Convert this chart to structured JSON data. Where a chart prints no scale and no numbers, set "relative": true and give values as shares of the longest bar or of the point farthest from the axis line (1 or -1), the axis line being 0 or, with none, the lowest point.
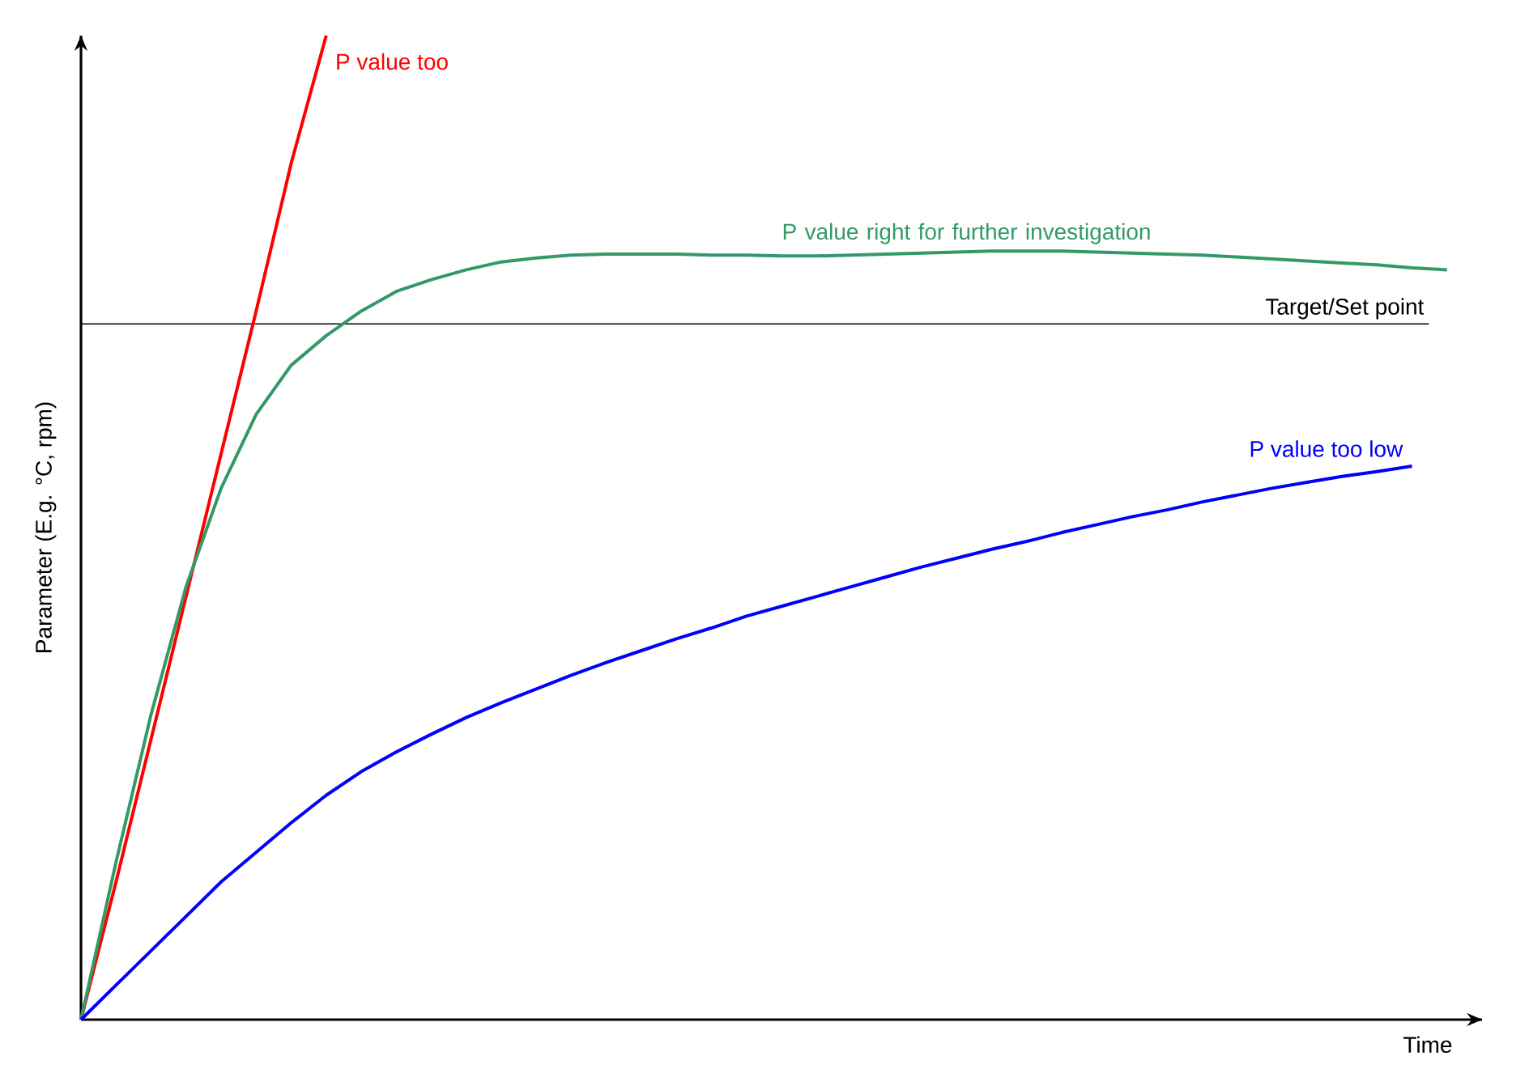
{
  "chart_data": {
    "type": "line",
    "xlabel": "Time",
    "ylabel": "Parameter (E.g. °C, rpm)",
    "relative": true,
    "categories": [
      null,
      null,
      null,
      null,
      null,
      null,
      null,
      null,
      null,
      null,
      null,
      null,
      null,
      null,
      null,
      null,
      null,
      null,
      null,
      null,
      null,
      null,
      null,
      null,
      null,
      null,
      null,
      null,
      null,
      null,
      null,
      null,
      null,
      null,
      null,
      null,
      null,
      null,
      null,
      null,
      null
    ],
    "series": [
      {
        "name": "P value too",
        "color": "#ff0000",
        "values": [
          0,
          0.14,
          0.285,
          0.43,
          0.575,
          0.72,
          0.87,
          1,
          null,
          null,
          null,
          null,
          null,
          null,
          null,
          null,
          null,
          null,
          null,
          null,
          null,
          null,
          null,
          null,
          null,
          null,
          null,
          null,
          null,
          null,
          null,
          null,
          null,
          null,
          null,
          null,
          null,
          null,
          null,
          null,
          null
        ]
      },
      {
        "name": "P value right for further investigation",
        "color": "#339966",
        "values": [
          0,
          0.16,
          0.31,
          0.44,
          0.54,
          0.615,
          0.665,
          0.695,
          0.72,
          0.74,
          0.752,
          0.762,
          0.77,
          0.774,
          0.777,
          0.778,
          0.778,
          0.778,
          0.777,
          0.777,
          0.776,
          0.776,
          0.777,
          0.778,
          0.779,
          0.78,
          0.781,
          0.781,
          0.781,
          0.78,
          0.779,
          0.778,
          0.777,
          0.775,
          0.773,
          0.771,
          0.769,
          0.767,
          0.764,
          0.762,
          null
        ]
      },
      {
        "name": "P value too low",
        "color": "#0000ff",
        "values": [
          0,
          0.035,
          0.07,
          0.105,
          0.14,
          0.17,
          0.2,
          0.228,
          0.252,
          0.272,
          0.29,
          0.307,
          0.322,
          0.336,
          0.35,
          0.363,
          0.375,
          0.387,
          0.398,
          0.41,
          0.42,
          0.43,
          0.44,
          0.45,
          0.46,
          0.469,
          0.478,
          0.486,
          0.495,
          0.503,
          0.511,
          0.518,
          0.526,
          0.533,
          0.54,
          0.546,
          0.552,
          0.557,
          0.5625,
          null,
          null
        ]
      }
    ],
    "ref_lines": [
      {
        "axis": "y",
        "value": 0.707,
        "label": "Target/Set point",
        "color": "#000000"
      }
    ]
  }
}
